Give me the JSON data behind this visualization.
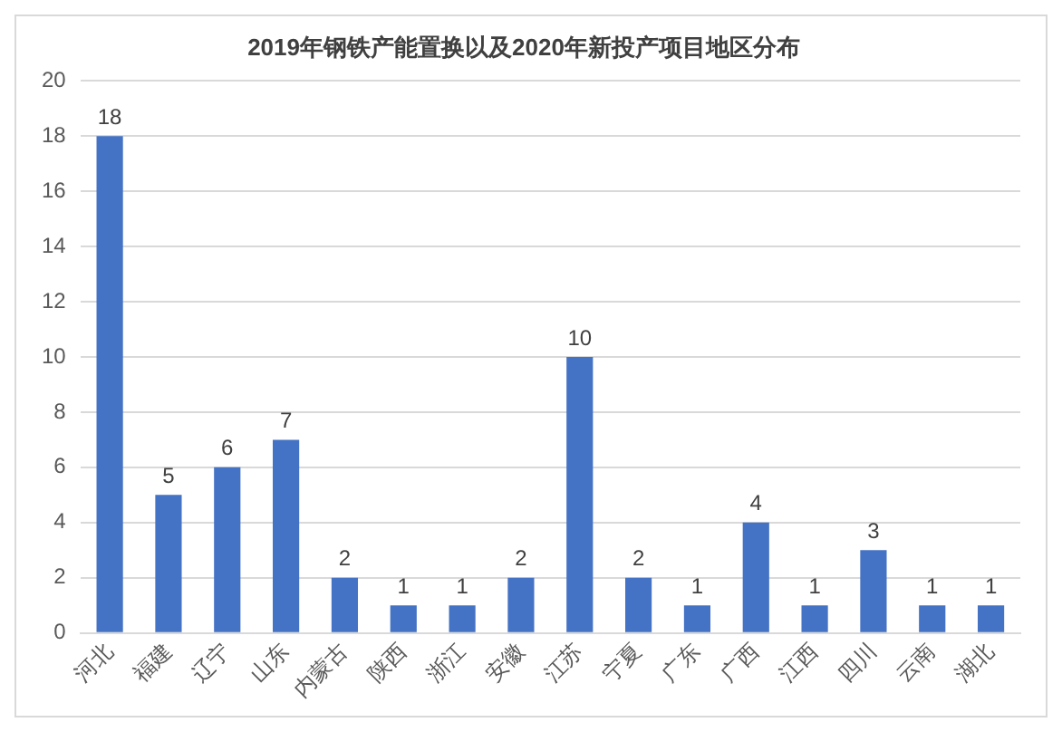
{
  "chart_data": {
    "type": "bar",
    "title": "2019年钢铁产能置换以及2020年新投产项目地区分布",
    "categories": [
      "河北",
      "福建",
      "辽宁",
      "山东",
      "内蒙古",
      "陕西",
      "浙江",
      "安徽",
      "江苏",
      "宁夏",
      "广东",
      "广西",
      "江西",
      "四川",
      "云南",
      "湖北"
    ],
    "values": [
      18,
      5,
      6,
      7,
      2,
      1,
      1,
      2,
      10,
      2,
      1,
      4,
      1,
      3,
      1,
      1
    ],
    "color": "#4472c4",
    "ylim": [
      0,
      20
    ],
    "yticks": [
      0,
      2,
      4,
      6,
      8,
      10,
      12,
      14,
      16,
      18,
      20
    ],
    "grid": "y",
    "data_labels": true
  }
}
